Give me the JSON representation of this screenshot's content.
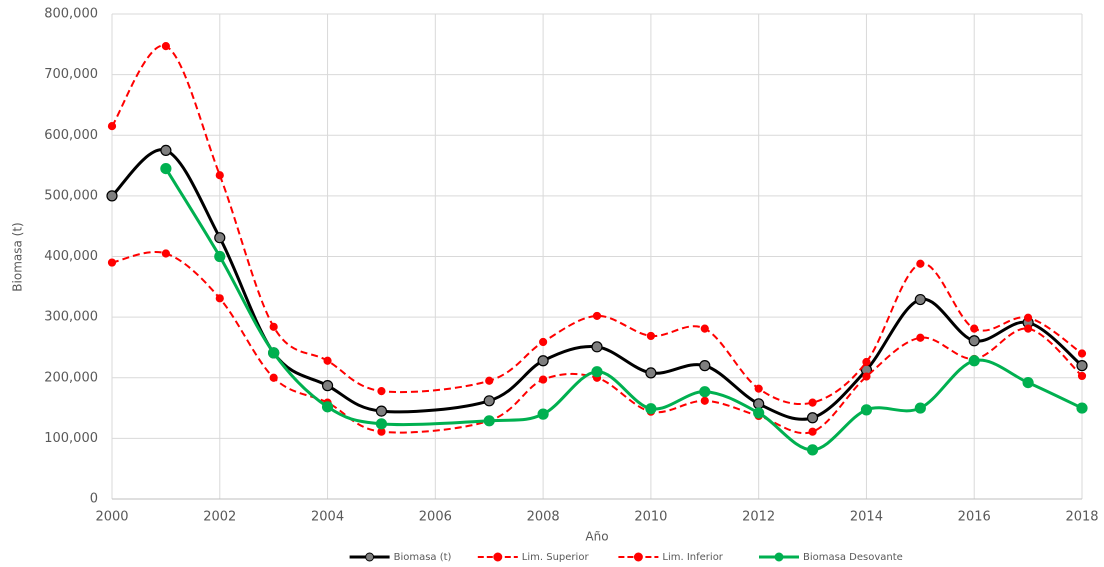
{
  "chart_data": {
    "type": "line",
    "x_label": "Año",
    "y_label": "Biomasa (t)",
    "xlim": [
      2000,
      2018
    ],
    "xticks": [
      2000,
      2002,
      2004,
      2006,
      2008,
      2010,
      2012,
      2014,
      2016,
      2018
    ],
    "ylim": [
      0,
      800000
    ],
    "yticks": [
      0,
      {
        "value": 100000,
        "label": "100,000"
      },
      {
        "value": 200000,
        "label": "200,000"
      },
      {
        "value": 300000,
        "label": "300,000"
      },
      {
        "value": 400000,
        "label": "400,000"
      },
      {
        "value": 500000,
        "label": "500,000"
      },
      {
        "value": 600000,
        "label": "600,000"
      },
      {
        "value": 700000,
        "label": "700,000"
      },
      {
        "value": 800000,
        "label": "800,000"
      }
    ],
    "grid": true,
    "smooth": true,
    "legend": "bottom",
    "series": [
      {
        "name": "Biomasa (t)",
        "color": "#000000",
        "marker_color": "#7f7f7f",
        "dashed": false,
        "x": [
          2000,
          2001,
          2002,
          2003,
          2004,
          2005,
          2007,
          2008,
          2009,
          2010,
          2011,
          2012,
          2013,
          2014,
          2015,
          2016,
          2017,
          2018
        ],
        "values": [
          500000,
          575000,
          431000,
          241000,
          187000,
          145000,
          162000,
          228000,
          251000,
          208000,
          220000,
          157000,
          134000,
          213000,
          329000,
          261000,
          291000,
          220000
        ]
      },
      {
        "name": "Lim. Superior",
        "color": "#ff0000",
        "marker_color": "#ff0000",
        "dashed": true,
        "x": [
          2000,
          2001,
          2002,
          2003,
          2004,
          2005,
          2007,
          2008,
          2009,
          2010,
          2011,
          2012,
          2013,
          2014,
          2015,
          2016,
          2017,
          2018
        ],
        "values": [
          615000,
          747000,
          534000,
          284000,
          228000,
          178000,
          195000,
          259000,
          302000,
          269000,
          281000,
          182000,
          159000,
          226000,
          388000,
          281000,
          299000,
          240000
        ]
      },
      {
        "name": "Lim. Inferior",
        "color": "#ff0000",
        "marker_color": "#ff0000",
        "dashed": true,
        "x": [
          2000,
          2001,
          2002,
          2003,
          2004,
          2005,
          2007,
          2008,
          2009,
          2010,
          2011,
          2012,
          2013,
          2014,
          2015,
          2016,
          2017,
          2018
        ],
        "values": [
          390000,
          405000,
          331000,
          200000,
          159000,
          111000,
          129000,
          197000,
          200000,
          144000,
          162000,
          137000,
          111000,
          202000,
          266000,
          231000,
          281000,
          203000
        ]
      },
      {
        "name": "Biomasa Desovante",
        "color": "#00b050",
        "marker_color": "#00b050",
        "dashed": false,
        "x": [
          2001,
          2002,
          2003,
          2004,
          2005,
          2007,
          2008,
          2009,
          2010,
          2011,
          2012,
          2013,
          2014,
          2015,
          2016,
          2017,
          2018
        ],
        "values": [
          545000,
          400000,
          241000,
          152000,
          124000,
          129000,
          140000,
          210000,
          149000,
          177000,
          142000,
          81000,
          147000,
          150000,
          228000,
          192000,
          150000
        ]
      }
    ]
  }
}
